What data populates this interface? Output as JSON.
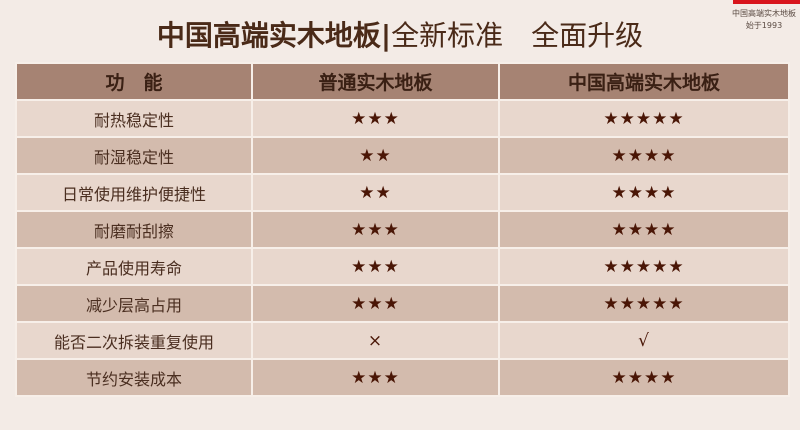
{
  "brand": {
    "name": "中国高端实木地板",
    "since": "始于1993",
    "accent": "#d8141c"
  },
  "title": {
    "main": "中国高端实木地板",
    "divider": "|",
    "sub": "全新标准　全面升级"
  },
  "table": {
    "headers": [
      "功　能",
      "普通实木地板",
      "中国高端实木地板"
    ],
    "rows": [
      {
        "feature": "耐热稳定性",
        "normal": "★★★",
        "premium": "★★★★★"
      },
      {
        "feature": "耐湿稳定性",
        "normal": "★★",
        "premium": "★★★★"
      },
      {
        "feature": "日常使用维护便捷性",
        "normal": "★★",
        "premium": "★★★★"
      },
      {
        "feature": "耐磨耐刮擦",
        "normal": "★★★",
        "premium": "★★★★"
      },
      {
        "feature": "产品使用寿命",
        "normal": "★★★",
        "premium": "★★★★★"
      },
      {
        "feature": "减少层高占用",
        "normal": "★★★",
        "premium": "★★★★★"
      },
      {
        "feature": "能否二次拆装重复使用",
        "normal": "×",
        "premium": "√"
      },
      {
        "feature": "节约安装成本",
        "normal": "★★★",
        "premium": "★★★★"
      }
    ]
  }
}
